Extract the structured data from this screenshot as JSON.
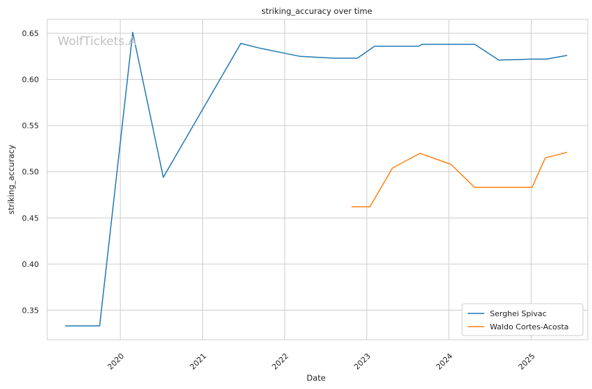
{
  "watermark": "WolfTickets.A",
  "chart_data": {
    "type": "line",
    "title": "striking_accuracy over time",
    "xlabel": "Date",
    "ylabel": "striking_accuracy",
    "x_axis_type": "date",
    "xlim": [
      "2019-02-10",
      "2025-09-10"
    ],
    "ylim": [
      0.318,
      0.665
    ],
    "x_ticks": [
      "2020",
      "2021",
      "2022",
      "2023",
      "2024",
      "2025"
    ],
    "y_ticks": [
      "0.35",
      "0.40",
      "0.45",
      "0.50",
      "0.55",
      "0.60",
      "0.65"
    ],
    "grid": true,
    "legend_position": "bottom-right",
    "series": [
      {
        "name": "Serghei Spivac",
        "color": "#1f77b4",
        "points": [
          [
            "2019-05-01",
            0.333
          ],
          [
            "2019-10-01",
            0.333
          ],
          [
            "2020-02-25",
            0.651
          ],
          [
            "2020-07-10",
            0.494
          ],
          [
            "2021-06-20",
            0.639
          ],
          [
            "2021-09-10",
            0.634
          ],
          [
            "2022-03-10",
            0.625
          ],
          [
            "2022-08-05",
            0.623
          ],
          [
            "2022-11-20",
            0.623
          ],
          [
            "2023-02-05",
            0.636
          ],
          [
            "2023-08-20",
            0.636
          ],
          [
            "2023-09-05",
            0.638
          ],
          [
            "2024-04-25",
            0.638
          ],
          [
            "2024-08-10",
            0.621
          ],
          [
            "2025-01-01",
            0.622
          ],
          [
            "2025-03-10",
            0.622
          ],
          [
            "2025-06-10",
            0.626
          ]
        ]
      },
      {
        "name": "Waldo Cortes-Acosta",
        "color": "#ff7f0e",
        "points": [
          [
            "2022-10-25",
            0.462
          ],
          [
            "2023-01-15",
            0.462
          ],
          [
            "2023-04-25",
            0.504
          ],
          [
            "2023-08-25",
            0.52
          ],
          [
            "2024-01-10",
            0.508
          ],
          [
            "2024-04-25",
            0.483
          ],
          [
            "2025-01-05",
            0.483
          ],
          [
            "2025-03-05",
            0.515
          ],
          [
            "2025-06-10",
            0.521
          ]
        ]
      }
    ]
  }
}
